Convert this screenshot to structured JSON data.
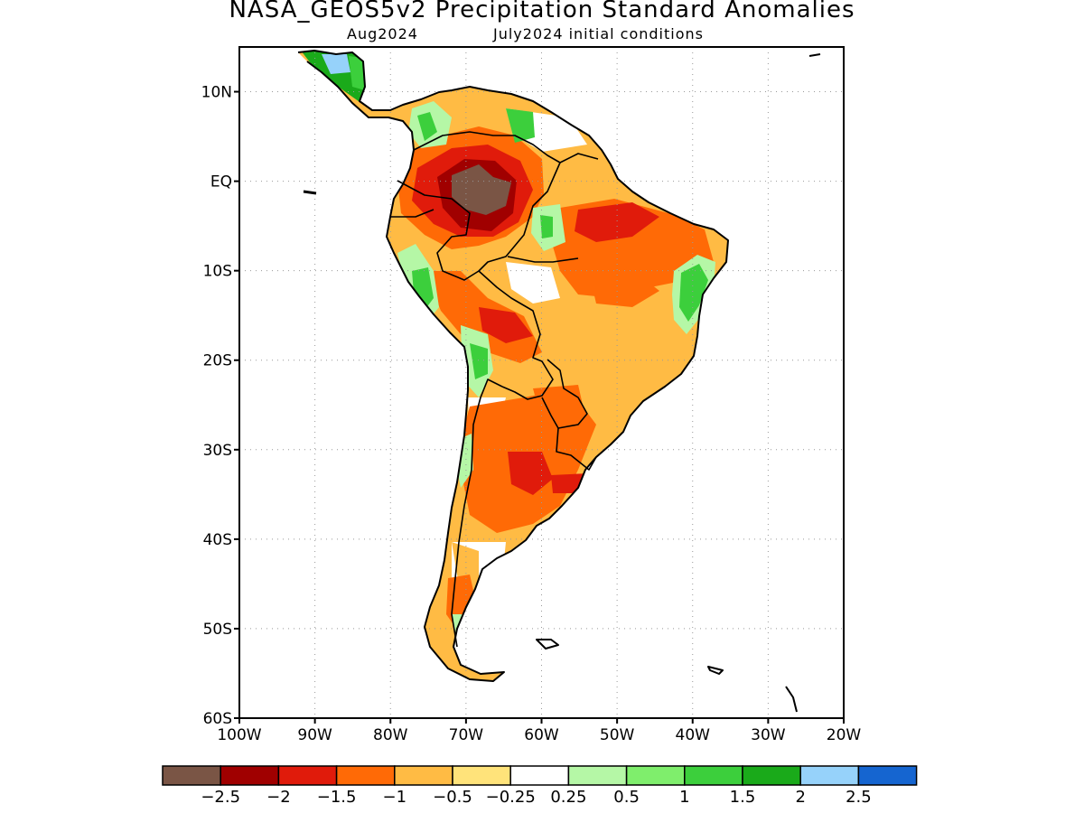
{
  "title": "NASA_GEOS5v2 Precipitation Standard Anomalies",
  "subtitle_left": "Aug2024",
  "subtitle_right": "July2024 initial conditions",
  "map": {
    "lon_range": [
      -100,
      -20
    ],
    "lat_range": [
      -60,
      15
    ],
    "lat_ticks": [
      {
        "value": 10,
        "label": "10N"
      },
      {
        "value": 0,
        "label": "EQ"
      },
      {
        "value": -10,
        "label": "10S"
      },
      {
        "value": -20,
        "label": "20S"
      },
      {
        "value": -30,
        "label": "30S"
      },
      {
        "value": -40,
        "label": "40S"
      },
      {
        "value": -50,
        "label": "50S"
      },
      {
        "value": -60,
        "label": "60S"
      }
    ],
    "lon_ticks": [
      {
        "value": -100,
        "label": "100W"
      },
      {
        "value": -90,
        "label": "90W"
      },
      {
        "value": -80,
        "label": "80W"
      },
      {
        "value": -70,
        "label": "70W"
      },
      {
        "value": -60,
        "label": "60W"
      },
      {
        "value": -50,
        "label": "50W"
      },
      {
        "value": -40,
        "label": "40W"
      },
      {
        "value": -30,
        "label": "30W"
      },
      {
        "value": -20,
        "label": "20W"
      }
    ],
    "grid": "dotted"
  },
  "colorbar": {
    "colors": [
      "#7a5545",
      "#a00000",
      "#e01b0b",
      "#ff6a06",
      "#ffbb44",
      "#ffe37a",
      "#ffffff",
      "#b5f7a6",
      "#7fee6c",
      "#3ccf3c",
      "#1aaa1a",
      "#96d2fa",
      "#1565d0"
    ],
    "labels": [
      "−2.5",
      "−2",
      "−1.5",
      "−1",
      "−0.5",
      "−0.25",
      "0.25",
      "0.5",
      "1",
      "1.5",
      "2",
      "2.5"
    ]
  },
  "colors": {
    "strong_dry": "#7a5545",
    "very_dry": "#a00000",
    "dry": "#e01b0b",
    "mod_dry": "#ff6a06",
    "slight_dry": "#ffbb44",
    "near_dry": "#ffe37a",
    "neutral": "#ffffff",
    "slight_wet": "#b5f7a6",
    "wet": "#7fee6c",
    "mod_wet": "#3ccf3c",
    "very_wet": "#1aaa1a",
    "strong_wet": "#96d2fa",
    "extreme_wet": "#1565d0"
  }
}
